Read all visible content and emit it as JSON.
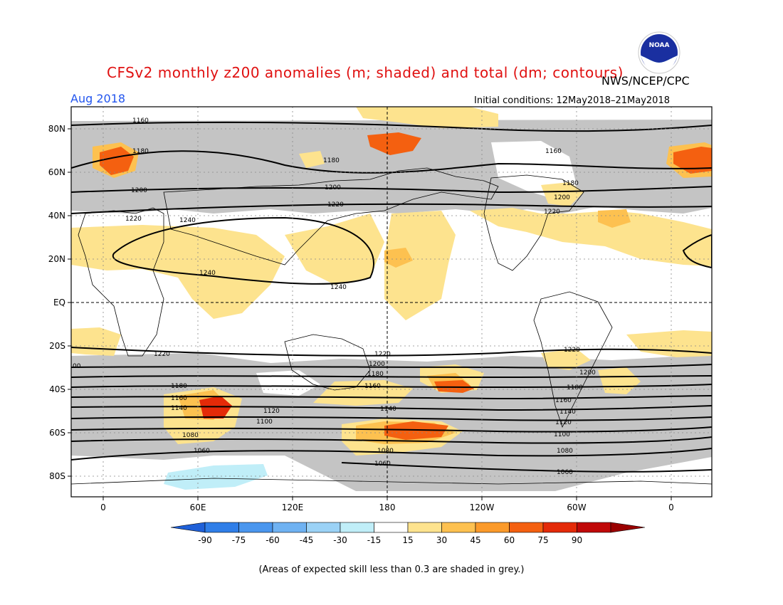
{
  "title": "CFSv2 monthly z200 anomalies (m; shaded) and total (dm; contours)",
  "agency": "NWS/NCEP/CPC",
  "month": "Aug 2018",
  "initial_conditions": "Initial conditions: 12May2018–21May2018",
  "footnote": "(Areas of expected skill less than 0.3 are shaded in grey.)",
  "logo_text": "NOAA",
  "lat_labels": [
    "80N",
    "60N",
    "40N",
    "20N",
    "EQ",
    "20S",
    "40S",
    "60S",
    "80S"
  ],
  "lon_labels": [
    "0",
    "60E",
    "120E",
    "180",
    "120W",
    "60W",
    "0"
  ],
  "colorbar": {
    "labels": [
      "-90",
      "-75",
      "-60",
      "-45",
      "-30",
      "-15",
      "15",
      "30",
      "45",
      "60",
      "75",
      "90"
    ],
    "colors": [
      "#1f60d8",
      "#2f7ee8",
      "#4a96ee",
      "#6fb2f2",
      "#9bd2f6",
      "#c0eef8",
      "#ffffff",
      "#fde38e",
      "#fdc150",
      "#fb9a2a",
      "#f46010",
      "#e42a08",
      "#c00808",
      "#9a0000"
    ]
  },
  "contours": {
    "labels_left": [
      "1160",
      "1180",
      "1200",
      "1220",
      "1240",
      "1240",
      "1220",
      "1180",
      "1160",
      "1140",
      "1080",
      "1060",
      "00"
    ],
    "labels_mid": [
      "1180",
      "1200",
      "1220",
      "1240",
      "1220",
      "1200",
      "1180",
      "1160",
      "1140",
      "1120",
      "1100",
      "1080",
      "1060"
    ],
    "labels_right": [
      "1160",
      "1180",
      "1200",
      "1220",
      "1220",
      "1200",
      "1180",
      "1160",
      "1140",
      "1120",
      "1100",
      "1080",
      "1060"
    ]
  },
  "colors": {
    "title": "#e01010",
    "month": "#2255ee",
    "grey_low_skill": "#c4c4c4"
  }
}
